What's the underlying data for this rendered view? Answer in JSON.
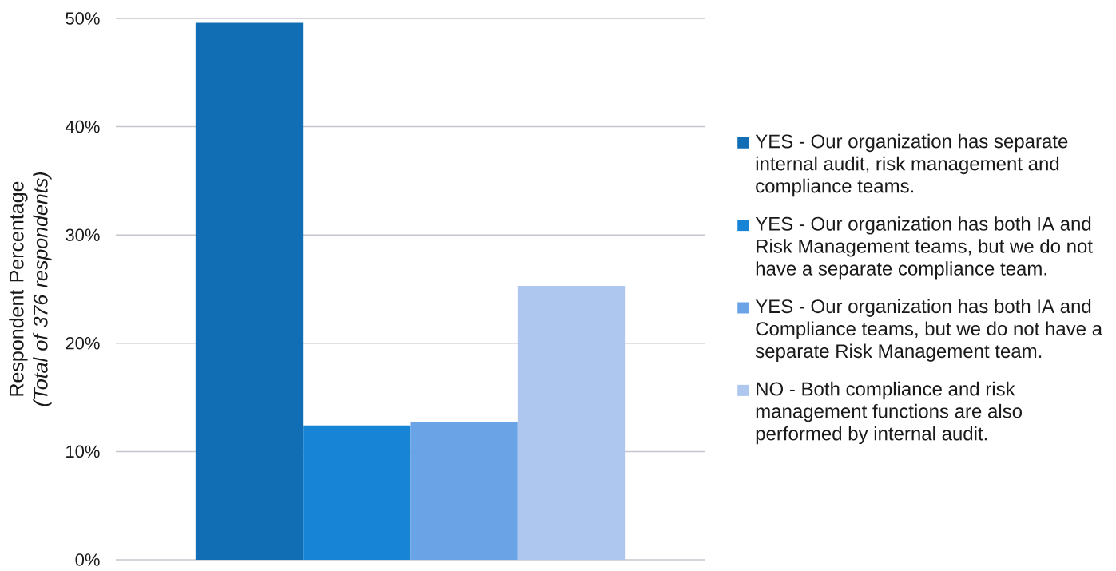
{
  "chart_data": {
    "type": "bar",
    "ylabel": "Respondent Percentage *(Total of 376 respondents)*",
    "categories": [
      null
    ],
    "series": [
      {
        "name": "YES - Our organization has separate internal audit, risk management and compliance teams.",
        "color": "#116db4",
        "values": [
          49.6
        ]
      },
      {
        "name": "YES - Our organization has both IA and Risk Management teams, but we do not have a separate compliance team.",
        "color": "#1884d6",
        "values": [
          12.4
        ]
      },
      {
        "name": "YES - Our organization has both IA and Compliance teams, but we do not have a separate Risk Management team.",
        "color": "#6ba4e6",
        "values": [
          12.7
        ]
      },
      {
        "name": "NO - Both compliance and risk management functions are also performed by internal audit.",
        "color": "#adc7ef",
        "values": [
          25.3
        ]
      }
    ],
    "ylim": [
      0,
      50
    ],
    "yticks": [
      {
        "value": 0,
        "label": "0%"
      },
      {
        "value": 10,
        "label": "10%"
      },
      {
        "value": 20,
        "label": "20%"
      },
      {
        "value": 30,
        "label": "30%"
      },
      {
        "value": 40,
        "label": "40%"
      },
      {
        "value": 50,
        "label": "50%"
      }
    ],
    "grid": "y",
    "legend": "right"
  }
}
